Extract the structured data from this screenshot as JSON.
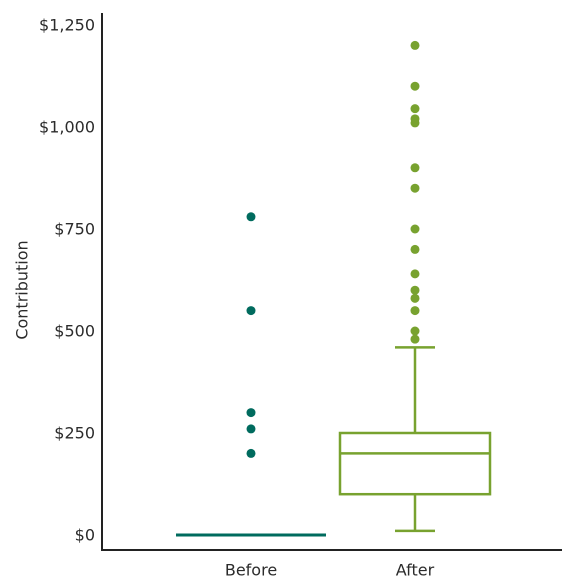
{
  "chart_data": {
    "type": "box",
    "title": "",
    "xlabel": "",
    "ylabel": "Contribution",
    "ylim": [
      0,
      1250
    ],
    "yticks": [
      {
        "value": 0,
        "label": "$0"
      },
      {
        "value": 250,
        "label": "$250"
      },
      {
        "value": 500,
        "label": "$500"
      },
      {
        "value": 750,
        "label": "$750"
      },
      {
        "value": 1000,
        "label": "$1,000"
      },
      {
        "value": 1250,
        "label": "$1,250"
      }
    ],
    "grid": false,
    "categories": [
      "Before",
      "After"
    ],
    "series": [
      {
        "category": "Before",
        "color": "#006b5e",
        "whisker_low": 0,
        "q1": 0,
        "median": 0,
        "q3": 0,
        "whisker_high": 0,
        "outliers": [
          200,
          260,
          300,
          550,
          780
        ]
      },
      {
        "category": "After",
        "color": "#78a22f",
        "whisker_low": 10,
        "q1": 100,
        "median": 200,
        "q3": 250,
        "whisker_high": 460,
        "outliers": [
          480,
          500,
          550,
          580,
          600,
          640,
          700,
          750,
          850,
          900,
          1010,
          1020,
          1045,
          1100,
          1200
        ]
      }
    ]
  }
}
